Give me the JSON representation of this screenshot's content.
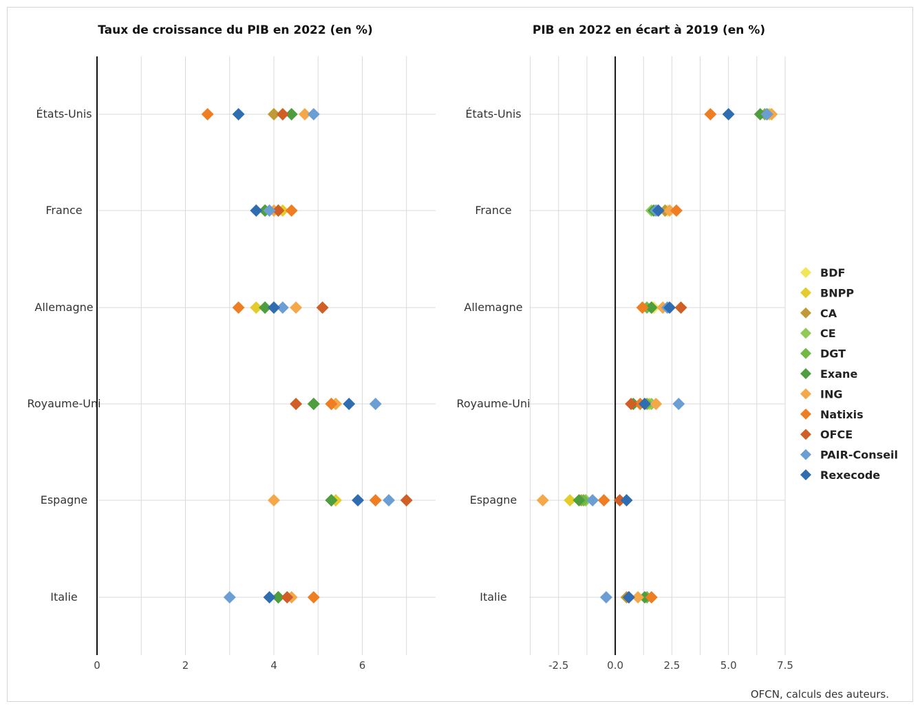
{
  "chart_data": [
    {
      "type": "scatter",
      "title": "Taux de croissance du PIB en 2022 (en %)",
      "categories": [
        "États-Unis",
        "France",
        "Allemagne",
        "Royaume-Uni",
        "Espagne",
        "Italie"
      ],
      "xlim": [
        0,
        7.3
      ],
      "xticks": [
        "0",
        "2",
        "4",
        "6"
      ],
      "grid": true,
      "series": [
        {
          "name": "BDF",
          "color": "#f2e55a",
          "values": [
            4.0,
            4.1,
            3.6,
            5.4,
            5.4,
            4.1
          ]
        },
        {
          "name": "BNPP",
          "color": "#e3cc2b",
          "values": [
            4.0,
            4.2,
            3.6,
            5.4,
            5.4,
            4.1
          ]
        },
        {
          "name": "CA",
          "color": "#bf9a36",
          "values": [
            4.0,
            4.1,
            4.0,
            5.3,
            5.3,
            4.1
          ]
        },
        {
          "name": "CE",
          "color": "#8fca55",
          "values": [
            4.2,
            3.8,
            3.8,
            4.9,
            5.3,
            4.1
          ]
        },
        {
          "name": "DGT",
          "color": "#71b845",
          "values": [
            4.4,
            3.8,
            3.8,
            4.9,
            5.3,
            4.1
          ]
        },
        {
          "name": "Exane",
          "color": "#4e9e3f",
          "values": [
            4.4,
            3.8,
            3.8,
            4.9,
            5.3,
            4.1
          ]
        },
        {
          "name": "ING",
          "color": "#f5a84a",
          "values": [
            4.7,
            4.0,
            4.5,
            5.4,
            4.0,
            4.4
          ]
        },
        {
          "name": "Natixis",
          "color": "#ef7d22",
          "values": [
            2.5,
            4.4,
            3.2,
            5.3,
            6.3,
            4.9
          ]
        },
        {
          "name": "OFCE",
          "color": "#cf5f27",
          "values": [
            4.2,
            4.1,
            5.1,
            4.5,
            7.0,
            4.3
          ]
        },
        {
          "name": "PAIR-Conseil",
          "color": "#6b9fd4",
          "values": [
            4.9,
            3.9,
            4.2,
            6.3,
            6.6,
            3.0
          ]
        },
        {
          "name": "Rexecode",
          "color": "#2f6db0",
          "values": [
            3.2,
            3.6,
            4.0,
            5.7,
            5.9,
            3.9
          ]
        }
      ]
    },
    {
      "type": "scatter",
      "title": "PIB en 2022 en écart à 2019 (en %)",
      "categories": [
        "États-Unis",
        "France",
        "Allemagne",
        "Royaume-Uni",
        "Espagne",
        "Italie"
      ],
      "xlim": [
        -3.8,
        7.5
      ],
      "xticks": [
        "-2.5",
        "0.0",
        "2.5",
        "5.0",
        "7.5"
      ],
      "grid": true,
      "series": [
        {
          "name": "BDF",
          "color": "#f2e55a",
          "values": [
            6.8,
            2.3,
            1.7,
            1.5,
            -1.3,
            0.6
          ]
        },
        {
          "name": "BNPP",
          "color": "#e3cc2b",
          "values": [
            6.8,
            2.2,
            1.6,
            1.5,
            -2.0,
            0.6
          ]
        },
        {
          "name": "CA",
          "color": "#bf9a36",
          "values": [
            6.7,
            2.2,
            1.6,
            1.3,
            -1.5,
            0.5
          ]
        },
        {
          "name": "CE",
          "color": "#8fca55",
          "values": [
            6.9,
            1.6,
            1.6,
            1.6,
            -1.3,
            1.4
          ]
        },
        {
          "name": "DGT",
          "color": "#71b845",
          "values": [
            6.6,
            1.8,
            1.4,
            1.4,
            -1.4,
            1.4
          ]
        },
        {
          "name": "Exane",
          "color": "#4e9e3f",
          "values": [
            6.4,
            1.7,
            1.6,
            0.8,
            -1.6,
            1.3
          ]
        },
        {
          "name": "ING",
          "color": "#f5a84a",
          "values": [
            6.9,
            2.4,
            2.1,
            1.8,
            -3.2,
            1.0
          ]
        },
        {
          "name": "Natixis",
          "color": "#ef7d22",
          "values": [
            4.2,
            2.7,
            1.2,
            1.1,
            -0.5,
            1.6
          ]
        },
        {
          "name": "OFCE",
          "color": "#cf5f27",
          "values": [
            6.7,
            1.9,
            2.9,
            0.7,
            0.2,
            0.6
          ]
        },
        {
          "name": "PAIR-Conseil",
          "color": "#6b9fd4",
          "values": [
            6.7,
            1.8,
            2.3,
            2.8,
            -1.0,
            -0.4
          ]
        },
        {
          "name": "Rexecode",
          "color": "#2f6db0",
          "values": [
            5.0,
            1.9,
            2.4,
            1.3,
            0.5,
            0.6
          ]
        }
      ]
    }
  ],
  "legend": {
    "placement": "right",
    "items": [
      {
        "name": "BDF",
        "color": "#f2e55a"
      },
      {
        "name": "BNPP",
        "color": "#e3cc2b"
      },
      {
        "name": "CA",
        "color": "#bf9a36"
      },
      {
        "name": "CE",
        "color": "#8fca55"
      },
      {
        "name": "DGT",
        "color": "#71b845"
      },
      {
        "name": "Exane",
        "color": "#4e9e3f"
      },
      {
        "name": "ING",
        "color": "#f5a84a"
      },
      {
        "name": "Natixis",
        "color": "#ef7d22"
      },
      {
        "name": "OFCE",
        "color": "#cf5f27"
      },
      {
        "name": "PAIR-Conseil",
        "color": "#6b9fd4"
      },
      {
        "name": "Rexecode",
        "color": "#2f6db0"
      }
    ]
  },
  "source": "OFCN, calculs des auteurs."
}
